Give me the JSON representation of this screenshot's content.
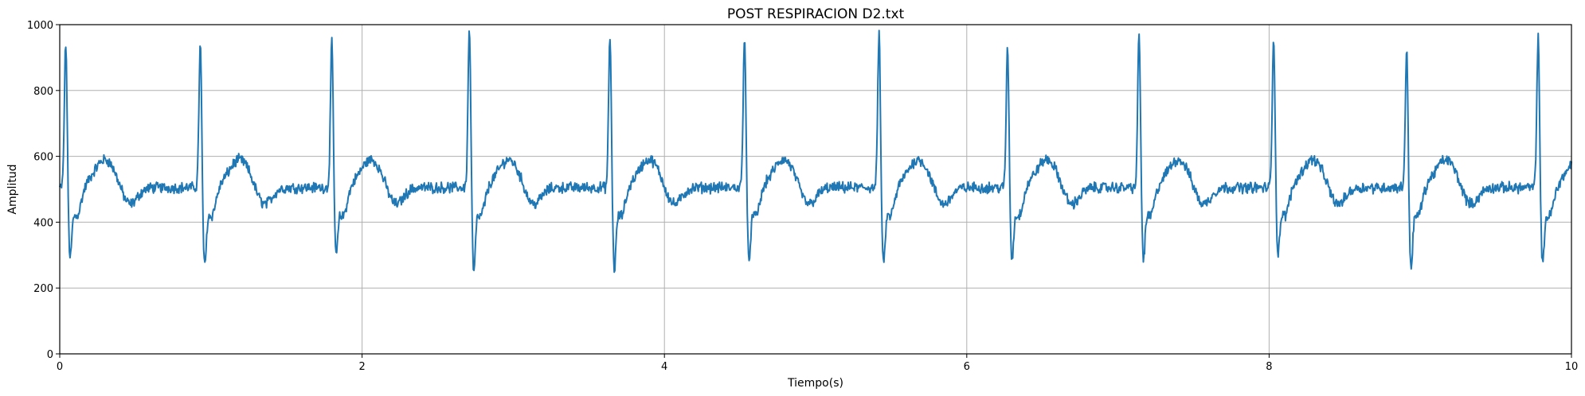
{
  "chart_data": {
    "type": "line",
    "title": "POST RESPIRACION D2.txt",
    "xlabel": "Tiempo(s)",
    "ylabel": "Amplitud",
    "xlim": [
      0,
      10
    ],
    "ylim": [
      0,
      1000
    ],
    "xticks": [
      0,
      2,
      4,
      6,
      8,
      10
    ],
    "yticks": [
      0,
      200,
      400,
      600,
      800,
      1000
    ],
    "xtick_labels": [
      "0",
      "2",
      "4",
      "6",
      "8",
      "10"
    ],
    "ytick_labels": [
      "0",
      "200",
      "400",
      "600",
      "800",
      "1000"
    ],
    "grid": true,
    "series": [
      {
        "color": "#1f77b4",
        "beats": [
          {
            "t": 0.04,
            "peak": 955,
            "trough": 325
          },
          {
            "t": 0.93,
            "peak": 950,
            "trough": 298
          },
          {
            "t": 1.8,
            "peak": 955,
            "trough": 332
          },
          {
            "t": 2.71,
            "peak": 1000,
            "trough": 282
          },
          {
            "t": 3.64,
            "peak": 975,
            "trough": 290
          },
          {
            "t": 4.53,
            "peak": 978,
            "trough": 318
          },
          {
            "t": 5.42,
            "peak": 980,
            "trough": 302
          },
          {
            "t": 6.27,
            "peak": 940,
            "trough": 318
          },
          {
            "t": 7.14,
            "peak": 982,
            "trough": 322
          },
          {
            "t": 8.03,
            "peak": 975,
            "trough": 338
          },
          {
            "t": 8.91,
            "peak": 932,
            "trough": 294
          },
          {
            "t": 9.78,
            "peak": 975,
            "trough": 302
          }
        ],
        "baseline": 505,
        "t_wave_peak": 580,
        "post_t_dip": 450,
        "noise_amplitude": 22
      }
    ]
  }
}
